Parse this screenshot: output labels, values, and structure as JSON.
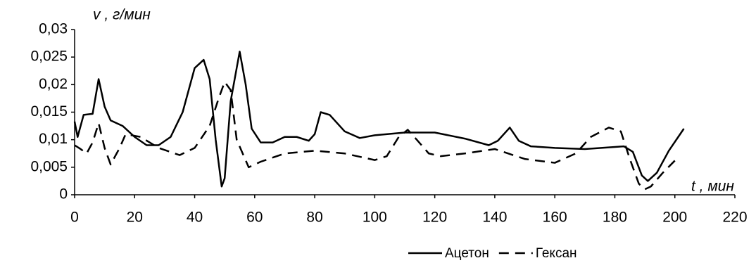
{
  "chart_data": {
    "type": "line",
    "y_label": "v , г/мин",
    "x_label": "t , мин",
    "xlim": [
      0,
      220
    ],
    "xticks": [
      0,
      20,
      40,
      60,
      80,
      100,
      120,
      140,
      160,
      180,
      200,
      220
    ],
    "ylim": [
      0,
      0.03
    ],
    "yticks": [
      0,
      {
        "value": 0.005,
        "label": "0,005"
      },
      {
        "value": 0.01,
        "label": "0,01"
      },
      {
        "value": 0.015,
        "label": "0,015"
      },
      {
        "value": 0.02,
        "label": "0,02"
      },
      {
        "value": 0.025,
        "label": "0,025"
      },
      {
        "value": 0.03,
        "label": "0,03"
      }
    ],
    "grid": false,
    "legend": "bottom",
    "series": [
      {
        "name": "Ацетон",
        "color": "#000000",
        "style": "solid",
        "x": [
          0,
          1,
          2,
          3,
          6,
          8,
          10,
          12,
          16,
          20,
          24,
          28,
          32,
          36,
          40,
          43,
          45,
          47,
          49,
          50,
          52,
          55,
          57,
          59,
          62,
          66,
          70,
          74,
          78,
          80,
          82,
          85,
          90,
          95,
          100,
          110,
          120,
          130,
          138,
          141,
          145,
          148,
          152,
          160,
          170,
          183,
          186,
          189,
          191,
          194,
          198,
          203
        ],
        "values": [
          0.0133,
          0.0105,
          0.0125,
          0.0145,
          0.0147,
          0.021,
          0.016,
          0.0135,
          0.0125,
          0.0105,
          0.009,
          0.009,
          0.0105,
          0.015,
          0.023,
          0.0245,
          0.021,
          0.01,
          0.0015,
          0.003,
          0.017,
          0.026,
          0.02,
          0.012,
          0.0095,
          0.0095,
          0.0105,
          0.0105,
          0.0098,
          0.011,
          0.015,
          0.0145,
          0.0115,
          0.0103,
          0.0108,
          0.0113,
          0.0113,
          0.0102,
          0.009,
          0.0098,
          0.0122,
          0.0098,
          0.0088,
          0.0085,
          0.0083,
          0.0088,
          0.0078,
          0.0035,
          0.0025,
          0.004,
          0.008,
          0.012
        ]
      },
      {
        "name": "Гексан",
        "color": "#000000",
        "style": "dashed",
        "x": [
          0,
          2,
          4,
          6,
          8,
          10,
          12,
          15,
          17,
          22,
          28,
          35,
          40,
          45,
          48,
          50,
          52,
          54,
          58,
          62,
          70,
          80,
          90,
          100,
          104,
          108,
          111,
          114,
          118,
          122,
          130,
          140,
          150,
          160,
          167,
          172,
          178,
          182,
          185,
          188,
          190,
          192,
          196,
          200
        ],
        "values": [
          0.009,
          0.0083,
          0.0075,
          0.0095,
          0.013,
          0.0085,
          0.0055,
          0.0085,
          0.011,
          0.0105,
          0.0085,
          0.0072,
          0.0085,
          0.0125,
          0.0175,
          0.0205,
          0.019,
          0.01,
          0.005,
          0.006,
          0.0075,
          0.008,
          0.0075,
          0.0063,
          0.007,
          0.0105,
          0.0118,
          0.01,
          0.0075,
          0.007,
          0.0075,
          0.0083,
          0.0065,
          0.0058,
          0.0075,
          0.0105,
          0.0122,
          0.0115,
          0.0065,
          0.002,
          0.001,
          0.0015,
          0.004,
          0.0062
        ]
      }
    ]
  }
}
